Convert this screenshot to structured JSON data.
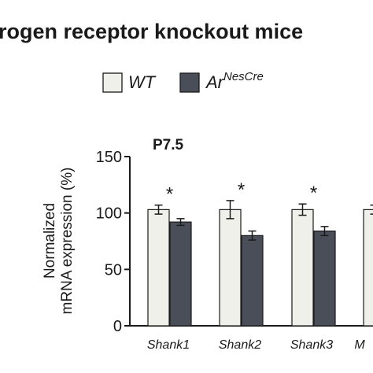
{
  "figure": {
    "title": "rogen receptor knockout mice",
    "legend": [
      {
        "label": "WT",
        "superscript": "",
        "color": "#f0f0ea"
      },
      {
        "label": "Ar",
        "superscript": "NesCre",
        "color": "#4a4e58"
      }
    ]
  },
  "chart_data": {
    "type": "bar",
    "title": "P7.5",
    "ylabel_lines": [
      "Normalized",
      "mRNA expression (%)"
    ],
    "xlabel": "",
    "ylim": [
      0,
      150
    ],
    "yticks": [
      0,
      50,
      100,
      150
    ],
    "categories": [
      "Shank1",
      "Shank2",
      "Shank3",
      "M"
    ],
    "series": [
      {
        "name": "WT",
        "color": "#f0f0ea",
        "values": [
          103,
          103,
          103,
          103
        ],
        "errors": [
          4,
          8,
          5,
          4
        ]
      },
      {
        "name": "Ar NesCre",
        "color": "#4a4e58",
        "values": [
          92,
          80,
          84,
          null
        ],
        "errors": [
          3,
          4,
          4,
          null
        ]
      }
    ],
    "annotations": [
      "*",
      "*",
      "*",
      ""
    ],
    "grid": false,
    "legend_position": "top"
  }
}
